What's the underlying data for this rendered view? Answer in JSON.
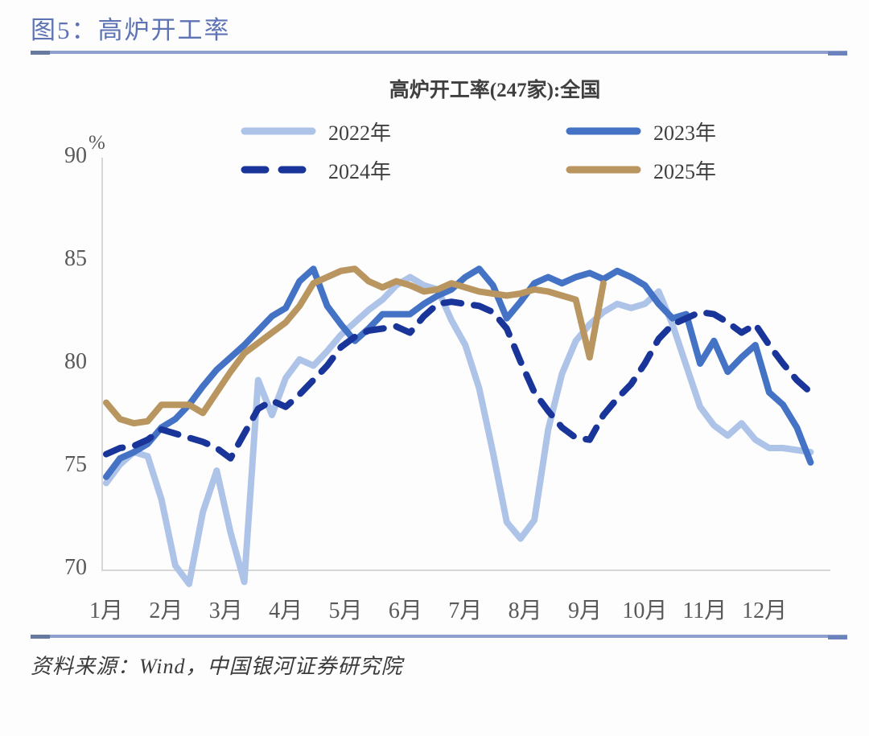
{
  "header": {
    "title": "图5：高炉开工率"
  },
  "footer": {
    "source": "资料来源：Wind，中国银河证券研究院"
  },
  "chart_data": {
    "type": "line",
    "title": "高炉开工率(247家):全国",
    "ylabel": "%",
    "xlabel": "",
    "ylim": [
      70,
      90
    ],
    "yticks": [
      90,
      85,
      80,
      75,
      70
    ],
    "grid": false,
    "legend_position": "top",
    "x_unit": "week-of-year",
    "xtick_labels": [
      "1月",
      "2月",
      "3月",
      "4月",
      "5月",
      "6月",
      "7月",
      "8月",
      "9月",
      "10月",
      "11月",
      "12月"
    ],
    "series": [
      {
        "name": "2022年",
        "color": "#aec3e8",
        "style": "solid",
        "values": [
          74.2,
          75.1,
          75.7,
          75.5,
          73.4,
          70.2,
          69.3,
          72.8,
          74.8,
          71.8,
          69.4,
          79.2,
          77.5,
          79.3,
          80.2,
          79.9,
          80.6,
          81.4,
          82.0,
          82.6,
          83.1,
          83.8,
          84.2,
          83.8,
          83.6,
          82.1,
          80.9,
          78.8,
          75.7,
          72.3,
          71.5,
          72.4,
          76.8,
          79.5,
          81.1,
          81.9,
          82.5,
          82.9,
          82.7,
          82.9,
          83.5,
          81.9,
          79.9,
          77.9,
          77.0,
          76.5,
          77.1,
          76.3,
          75.9,
          75.9,
          75.8,
          75.7
        ]
      },
      {
        "name": "2023年",
        "color": "#4472c4",
        "style": "solid",
        "values": [
          74.5,
          75.4,
          75.7,
          76.1,
          76.9,
          77.3,
          78.0,
          78.9,
          79.7,
          80.3,
          80.9,
          81.6,
          82.3,
          82.7,
          84.0,
          84.6,
          82.8,
          81.9,
          81.1,
          81.7,
          82.4,
          82.4,
          82.4,
          82.9,
          83.3,
          83.6,
          84.2,
          84.6,
          83.8,
          82.2,
          83.0,
          83.9,
          84.2,
          83.9,
          84.2,
          84.4,
          84.1,
          84.5,
          84.2,
          83.8,
          82.9,
          82.2,
          82.4,
          80.0,
          81.1,
          79.6,
          80.3,
          80.9,
          78.6,
          78.0,
          76.9,
          75.2
        ]
      },
      {
        "name": "2024年",
        "color": "#1a3599",
        "style": "dashed",
        "values": [
          75.6,
          75.9,
          76.0,
          76.3,
          76.8,
          76.6,
          76.4,
          76.2,
          75.9,
          75.4,
          76.6,
          77.8,
          78.2,
          77.9,
          78.5,
          79.2,
          79.9,
          80.8,
          81.3,
          81.6,
          81.7,
          81.8,
          81.5,
          82.3,
          82.9,
          83.0,
          82.9,
          82.8,
          82.5,
          81.7,
          80.1,
          78.6,
          77.7,
          76.9,
          76.4,
          76.3,
          77.5,
          78.3,
          79.0,
          80.0,
          81.2,
          81.9,
          82.2,
          82.5,
          82.4,
          82.0,
          81.5,
          81.9,
          80.9,
          80.0,
          79.2,
          78.6
        ]
      },
      {
        "name": "2025年",
        "color": "#b9955f",
        "style": "solid",
        "values": [
          78.1,
          77.3,
          77.1,
          77.2,
          78.0,
          78.0,
          78.0,
          77.6,
          78.6,
          79.6,
          80.5,
          81.0,
          81.5,
          82.0,
          82.8,
          83.9,
          84.2,
          84.5,
          84.6,
          84.0,
          83.7,
          84.0,
          83.8,
          83.5,
          83.6,
          83.9,
          83.7,
          83.5,
          83.4,
          83.3,
          83.4,
          83.6,
          83.5,
          83.3,
          83.1,
          80.3,
          83.9
        ]
      }
    ]
  }
}
